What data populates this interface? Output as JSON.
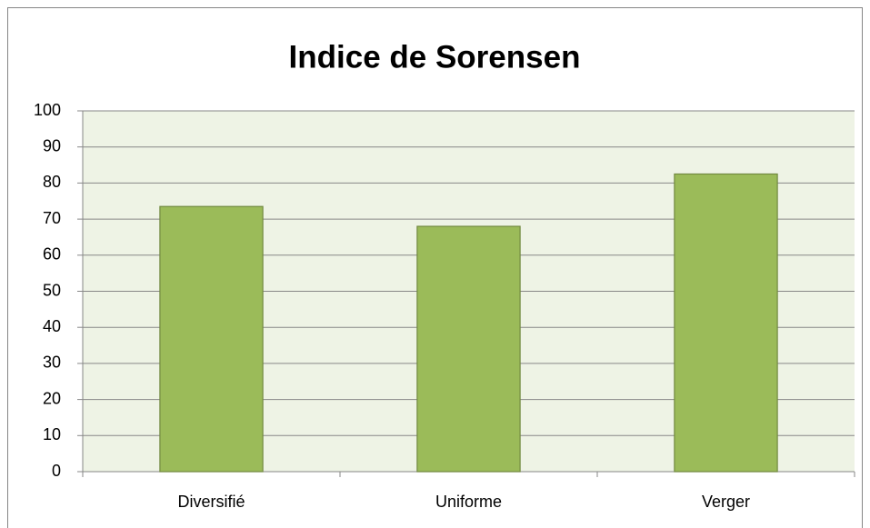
{
  "chart_data": {
    "type": "bar",
    "title": "Indice de Sorensen",
    "categories": [
      "Diversifié",
      "Uniforme",
      "Verger"
    ],
    "values": [
      73.5,
      68,
      82.5
    ],
    "color": "#9bbb59",
    "ylim": [
      0,
      100
    ],
    "yticks": [
      0,
      10,
      20,
      30,
      40,
      50,
      60,
      70,
      80,
      90,
      100
    ],
    "grid": true
  }
}
